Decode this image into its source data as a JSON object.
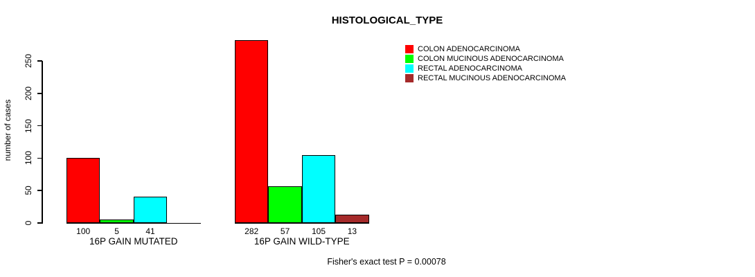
{
  "title": "HISTOLOGICAL_TYPE",
  "chart_data": {
    "type": "bar",
    "title": "HISTOLOGICAL_TYPE",
    "ylabel": "number of cases",
    "xlabel": "",
    "ylim": [
      0,
      290
    ],
    "yticks": [
      0,
      50,
      100,
      150,
      200,
      250
    ],
    "grid": false,
    "legend_position": "top-right",
    "categories": [
      "16P GAIN MUTATED",
      "16P GAIN WILD-TYPE"
    ],
    "series": [
      {
        "name": "COLON ADENOCARCINOMA",
        "color": "#ff0000",
        "values": [
          100,
          282
        ]
      },
      {
        "name": "COLON MUCINOUS ADENOCARCINOMA",
        "color": "#00ff00",
        "values": [
          5,
          57
        ]
      },
      {
        "name": "RECTAL ADENOCARCINOMA",
        "color": "#00ffff",
        "values": [
          41,
          105
        ]
      },
      {
        "name": "RECTAL MUCINOUS ADENOCARCINOMA",
        "color": "#a52a2a",
        "values": [
          null,
          13
        ]
      }
    ],
    "bar_value_labels": [
      [
        "100",
        "5",
        "41",
        null
      ],
      [
        "282",
        "57",
        "105",
        "13"
      ]
    ],
    "annotation": "Fisher's exact test P = 0.00078"
  }
}
